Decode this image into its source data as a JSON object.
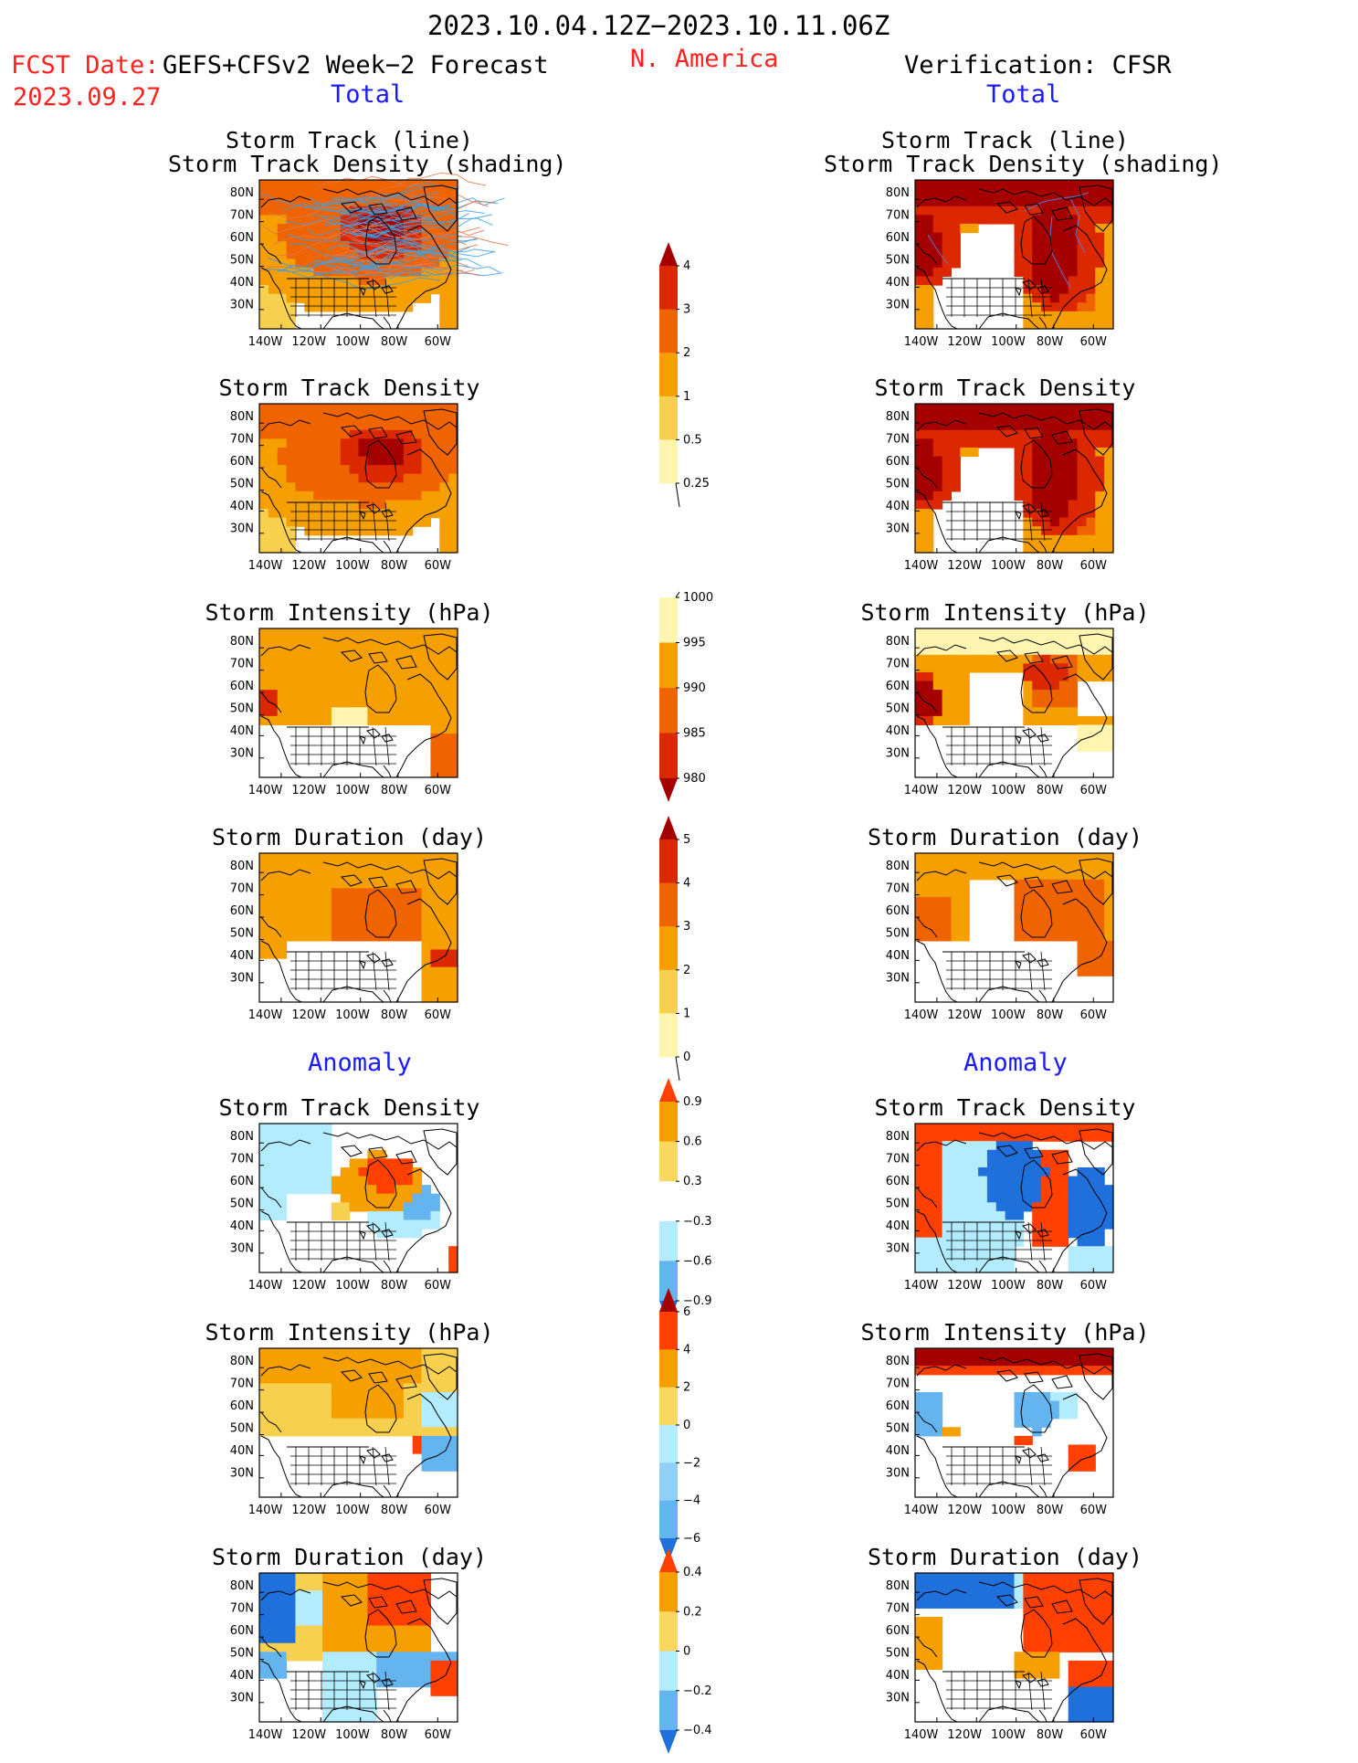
{
  "header": {
    "period": "2023.10.04.12Z−2023.10.11.06Z",
    "fcst_label": "FCST Date:",
    "fcst_model": "GEFS+CFSv2 Week−2 Forecast",
    "fcst_date": "2023.09.27",
    "region": "N. America",
    "verification": "Verification: CFSR",
    "total_left": "Total",
    "total_right": "Total",
    "anomaly_left": "Anomaly",
    "anomaly_right": "Anomaly"
  },
  "axes": {
    "lat_labels": [
      "80N",
      "70N",
      "60N",
      "50N",
      "40N",
      "30N"
    ],
    "lon_labels": [
      "140W",
      "120W",
      "100W",
      "80W",
      "60W"
    ]
  },
  "panels": [
    {
      "id": "track-line",
      "title": "Storm Track (line)\nStorm Track Density (shading)"
    },
    {
      "id": "track-density",
      "title": "Storm Track Density"
    },
    {
      "id": "intensity",
      "title": "Storm Intensity (hPa)"
    },
    {
      "id": "duration",
      "title": "Storm Duration (day)"
    },
    {
      "id": "anom-density",
      "title": "Storm Track Density"
    },
    {
      "id": "anom-intensity",
      "title": "Storm Intensity (hPa)"
    },
    {
      "id": "anom-duration",
      "title": "Storm Duration (day)"
    }
  ],
  "colorbars": [
    {
      "id": "density",
      "labels": [
        "4",
        "3",
        "2",
        "1",
        "0.5",
        "0.25"
      ],
      "colors": [
        "#a50000",
        "#dc2800",
        "#f06400",
        "#f5a000",
        "#f8d050",
        "#fff5b0"
      ]
    },
    {
      "id": "intensity",
      "labels": [
        "1000",
        "995",
        "990",
        "985",
        "980"
      ],
      "colors": [
        "#fff5b0",
        "#f5a000",
        "#f06400",
        "#dc2800",
        "#a50000"
      ]
    },
    {
      "id": "duration",
      "labels": [
        "5",
        "4",
        "3",
        "2",
        "1",
        "0"
      ],
      "colors": [
        "#a50000",
        "#dc2800",
        "#f06400",
        "#f5a000",
        "#f8d050",
        "#fff5b0"
      ]
    },
    {
      "id": "anom-density",
      "labels": [
        "0.9",
        "0.6",
        "0.3",
        "−0.3",
        "−0.6",
        "−0.9"
      ],
      "colors": [
        "#ff4000",
        "#f5a000",
        "#fad860",
        "#ffffff",
        "#b4ecff",
        "#64b4f0",
        "#2070dc"
      ]
    },
    {
      "id": "anom-intensity",
      "labels": [
        "6",
        "4",
        "2",
        "0",
        "−2",
        "−4",
        "−6"
      ],
      "colors": [
        "#a50000",
        "#ff4000",
        "#f5a000",
        "#fad860",
        "#b4ecff",
        "#90d0f8",
        "#64b4f0",
        "#2070dc"
      ]
    },
    {
      "id": "anom-duration",
      "labels": [
        "0.4",
        "0.2",
        "0",
        "−0.2",
        "−0.4"
      ],
      "colors": [
        "#ff4000",
        "#f5a000",
        "#fad860",
        "#b4ecff",
        "#64b4f0",
        "#2070dc"
      ]
    }
  ],
  "palette": {
    "blue_track": "#3aa0e8",
    "cfsr_track": "#5a78d0",
    "gefs_track": "#e07850"
  }
}
